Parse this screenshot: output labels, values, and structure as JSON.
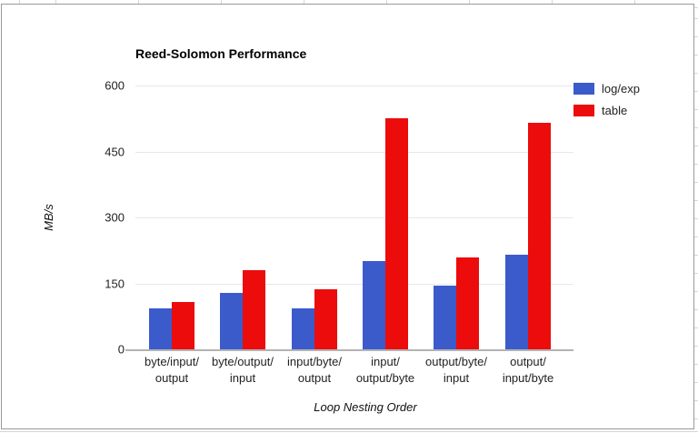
{
  "chart_data": {
    "type": "bar",
    "title": "Reed-Solomon Performance",
    "xlabel": "Loop Nesting Order",
    "ylabel": "MB/s",
    "categories": [
      "byte/input/output",
      "byte/output/input",
      "input/byte/output",
      "input/output/byte",
      "output/byte/input",
      "output/input/byte"
    ],
    "category_display_lines": [
      [
        "byte/input/",
        "output"
      ],
      [
        "byte/output/",
        "input"
      ],
      [
        "input/byte/",
        "output"
      ],
      [
        "input/",
        "output/byte"
      ],
      [
        "output/byte/",
        "input"
      ],
      [
        "output/",
        "input/byte"
      ]
    ],
    "series": [
      {
        "name": "log/exp",
        "color": "#3b5bcb",
        "values": [
          93,
          129,
          93,
          200,
          144,
          216
        ]
      },
      {
        "name": "table",
        "color": "#ec0c0c",
        "values": [
          107,
          180,
          136,
          525,
          210,
          515
        ]
      }
    ],
    "ylim": [
      0,
      600
    ],
    "yticks": [
      0,
      150,
      300,
      450,
      600
    ],
    "grid": true,
    "legend_position": "top-right",
    "colors": {
      "gridline": "#e7e7e7",
      "baseline": "#b3b3b3",
      "frame_border": "#9a9a9a",
      "sheet_gridline": "#d6d6d6",
      "text": "#222222"
    }
  }
}
